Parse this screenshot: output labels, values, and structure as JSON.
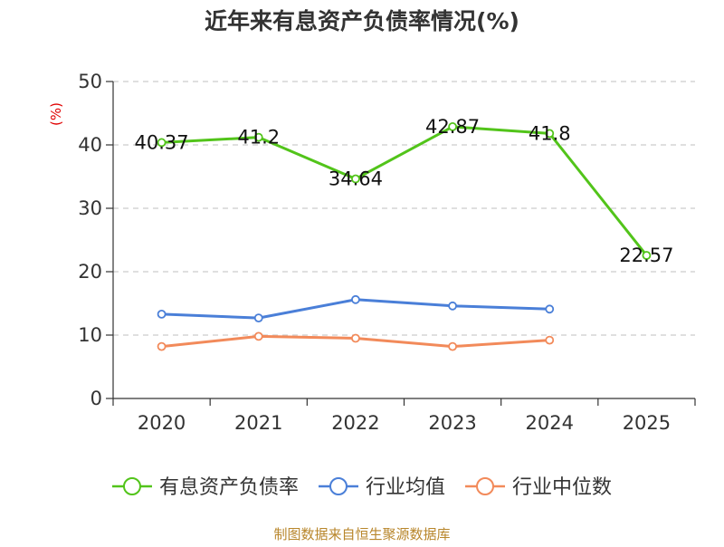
{
  "chart_data": {
    "type": "line",
    "title": "近年来有息资产负债率情况(%)",
    "unit_label": "(%)",
    "categories": [
      "2020",
      "2021",
      "2022",
      "2023",
      "2024",
      "2025"
    ],
    "y_ticks": [
      "0",
      "10",
      "20",
      "30",
      "40",
      "50"
    ],
    "ylim": [
      0,
      50
    ],
    "grid": "horizontal-dashed",
    "legend_position": "bottom",
    "series": [
      {
        "name": "有息资产负债率",
        "color": "#52c41a",
        "values": [
          40.37,
          41.2,
          34.64,
          42.87,
          41.8,
          22.57
        ],
        "labels": [
          "40.37",
          "41.2",
          "34.64",
          "42.87",
          "41.8",
          "22.57"
        ]
      },
      {
        "name": "行业均值",
        "color": "#4a7fd8",
        "values": [
          13.3,
          12.7,
          15.6,
          14.6,
          14.1,
          null
        ]
      },
      {
        "name": "行业中位数",
        "color": "#f28a5a",
        "values": [
          8.2,
          9.8,
          9.5,
          8.2,
          9.2,
          null
        ]
      }
    ]
  },
  "source_text": "制图数据来自恒生聚源数据库"
}
